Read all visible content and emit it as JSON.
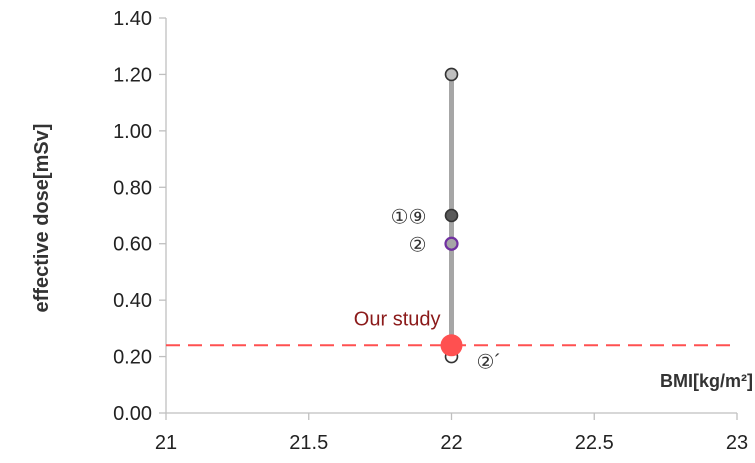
{
  "chart_data": {
    "type": "scatter",
    "xlabel": "BMI[kg/m²]",
    "ylabel": "effective dose[mSv]",
    "xlim": [
      21,
      23
    ],
    "ylim": [
      0,
      1.4
    ],
    "x_ticks": [
      "21",
      "21.5",
      "22",
      "22.5",
      "23"
    ],
    "y_ticks": [
      "0.00",
      "0.20",
      "0.40",
      "0.60",
      "0.80",
      "1.00",
      "1.20",
      "1.40"
    ],
    "range_bar": {
      "x": 22,
      "y_min": 0.2,
      "y_max": 1.2,
      "color": "#a6a6a6"
    },
    "series": [
      {
        "values": [
          {
            "x": 22,
            "y": 1.2
          }
        ],
        "color": "#bfbfbf"
      },
      {
        "values": [
          {
            "x": 22,
            "y": 0.7
          }
        ],
        "color": "#595959"
      },
      {
        "values": [
          {
            "x": 22,
            "y": 0.6
          }
        ],
        "color": "#a6a6a6",
        "edge": "#7030a0"
      },
      {
        "values": [
          {
            "x": 22,
            "y": 0.2
          }
        ],
        "color": "#ffffff"
      },
      {
        "values": [
          {
            "x": 22,
            "y": 0.24
          }
        ],
        "color": "#ff5050"
      }
    ],
    "reference_line": {
      "y": 0.24,
      "color": "#ff5050",
      "style": "dashed"
    },
    "annotations": [
      {
        "text": "①⑨",
        "x": 22,
        "y": 0.7
      },
      {
        "text": "②",
        "x": 22,
        "y": 0.6
      },
      {
        "text": "Our study",
        "x": 22,
        "y": 0.24
      },
      {
        "text": "②´",
        "x": 22,
        "y": 0.2
      }
    ],
    "grid": false
  }
}
